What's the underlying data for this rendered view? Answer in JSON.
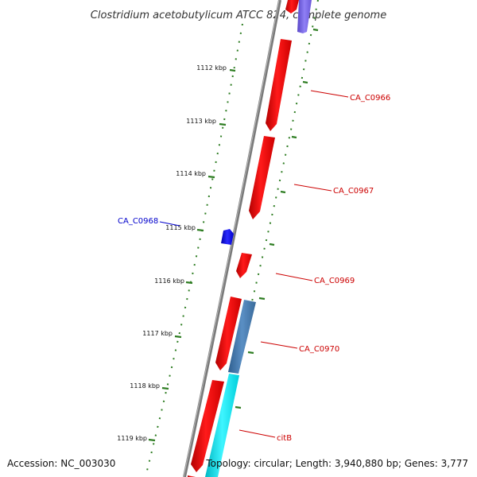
{
  "title": "Clostridium acetobutylicum ATCC 824, complete genome",
  "accession": "Accession: NC_003030",
  "topology": "Topology: circular; Length: 3,940,880 bp; Genes: 3,777",
  "scale_labels": [
    "1112 kbp",
    "1113 kbp",
    "1114 kbp",
    "1115 kbp",
    "1116 kbp",
    "1117 kbp",
    "1118 kbp",
    "1119 kbp"
  ],
  "colors": {
    "backbone": "#7a7a7a",
    "ruler": "#2e7d22",
    "gene_forward": "#ff0000",
    "gene_label_red": "#cc0000",
    "gene_label_blue": "#0000cc",
    "gene_blue": "#1010ee",
    "gene_steel": "#4a80b4",
    "gene_cyan": "#00e5ee",
    "gene_purple": "#7b68ee"
  },
  "genes": [
    {
      "label": "CA_C0966",
      "color": "red"
    },
    {
      "label": "CA_C0967",
      "color": "red"
    },
    {
      "label": "CA_C0968",
      "color": "blue"
    },
    {
      "label": "CA_C0969",
      "color": "red"
    },
    {
      "label": "CA_C0970",
      "color": "red"
    },
    {
      "label": "citB",
      "color": "red"
    }
  ]
}
